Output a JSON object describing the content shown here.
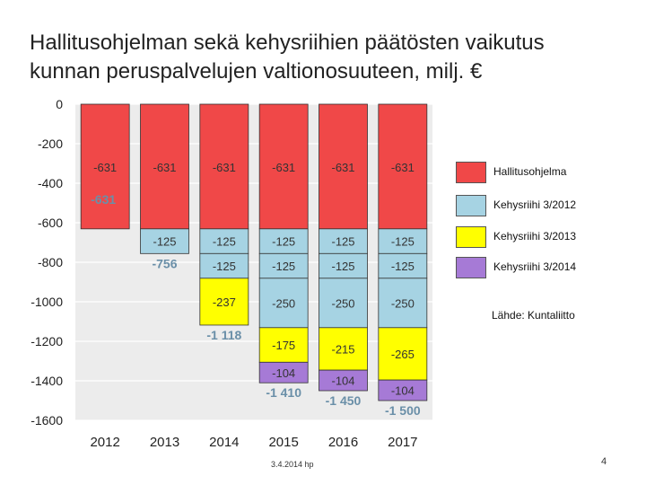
{
  "title_lines": [
    "Hallitusohjelman sekä kehysriihien päätösten vaikutus",
    "kunnan peruspalvelujen valtionosuuteen, milj. €"
  ],
  "source": "Lähde: Kuntaliitto",
  "footer_date": "3.4.2014 hp",
  "page_number": "4",
  "colors": {
    "Hallitusohjelma": "#f04848",
    "Kehysriihi 3/2012": "#a6d3e3",
    "Kehysriihi 3/2013": "#ffff00",
    "Kehysriihi 3/2014": "#a67ad6",
    "panel_bg": "#ececec",
    "grid": "#ffffff",
    "total_label": "#6a8fa8"
  },
  "chart_data": {
    "type": "bar",
    "stacked": true,
    "categories": [
      "2012",
      "2013",
      "2014",
      "2015",
      "2016",
      "2017"
    ],
    "series": [
      {
        "name": "Hallitusohjelma",
        "values": [
          -631,
          -631,
          -631,
          -631,
          -631,
          -631
        ]
      },
      {
        "name": "Kehysriihi 3/2012",
        "values": [
          null,
          -125,
          -125,
          -125,
          -125,
          -125
        ]
      },
      {
        "name": "Kehysriihi 3/2012 (b)",
        "legend": false,
        "values": [
          null,
          null,
          -125,
          -125,
          -125,
          -125
        ]
      },
      {
        "name": "Kehysriihi 3/2012 (c)",
        "legend": false,
        "values": [
          null,
          null,
          null,
          -250,
          -250,
          -250
        ]
      },
      {
        "name": "Kehysriihi 3/2013",
        "values": [
          null,
          null,
          -237,
          -175,
          -215,
          -265
        ]
      },
      {
        "name": "Kehysriihi 3/2014",
        "values": [
          null,
          null,
          null,
          -104,
          -104,
          -104
        ]
      }
    ],
    "series_colors": [
      "Hallitusohjelma",
      "Kehysriihi 3/2012",
      "Kehysriihi 3/2012",
      "Kehysriihi 3/2012",
      "Kehysriihi 3/2013",
      "Kehysriihi 3/2014"
    ],
    "segment_labels": [
      [
        "-631",
        "-631",
        "-631",
        "-631",
        "-631",
        "-631"
      ],
      [
        "",
        "-125",
        "-125",
        "-125",
        "-125",
        "-125"
      ],
      [
        "",
        "",
        "-125",
        "-125",
        "-125",
        "-125"
      ],
      [
        "",
        "",
        "",
        "-250",
        "-250",
        "-250"
      ],
      [
        "",
        "",
        "-237",
        "-175",
        "-215",
        "-265"
      ],
      [
        "",
        "",
        "",
        "-104",
        "-104",
        "-104"
      ]
    ],
    "totals": [
      {
        "category": "2012",
        "value": -631,
        "label": "-631"
      },
      {
        "category": "2013",
        "value": -756,
        "label": "-756"
      },
      {
        "category": "2014",
        "value": -1118,
        "label": "-1 118"
      },
      {
        "category": "2015",
        "value": -1410,
        "label": "-1 410"
      },
      {
        "category": "2016",
        "value": -1450,
        "label": "-1 450"
      },
      {
        "category": "2017",
        "value": -1500,
        "label": "-1 500"
      }
    ],
    "ylim": [
      -1600,
      0
    ],
    "yticks": [
      0,
      -200,
      -400,
      -600,
      -800,
      -1000,
      -1200,
      -1400,
      -1600
    ],
    "ytick_labels": [
      "0",
      "-200",
      "-400",
      "-600",
      "-800",
      "-1000",
      "-1200",
      "-1400",
      "-1600"
    ],
    "grid": true,
    "legend": [
      {
        "name": "Hallitusohjelma",
        "icon": "swatch-red"
      },
      {
        "name": "Kehysriihi 3/2012",
        "icon": "swatch-lightblue"
      },
      {
        "name": "Kehysriihi 3/2013",
        "icon": "swatch-yellow"
      },
      {
        "name": "Kehysriihi 3/2014",
        "icon": "swatch-purple"
      }
    ],
    "legend_position": "right"
  }
}
